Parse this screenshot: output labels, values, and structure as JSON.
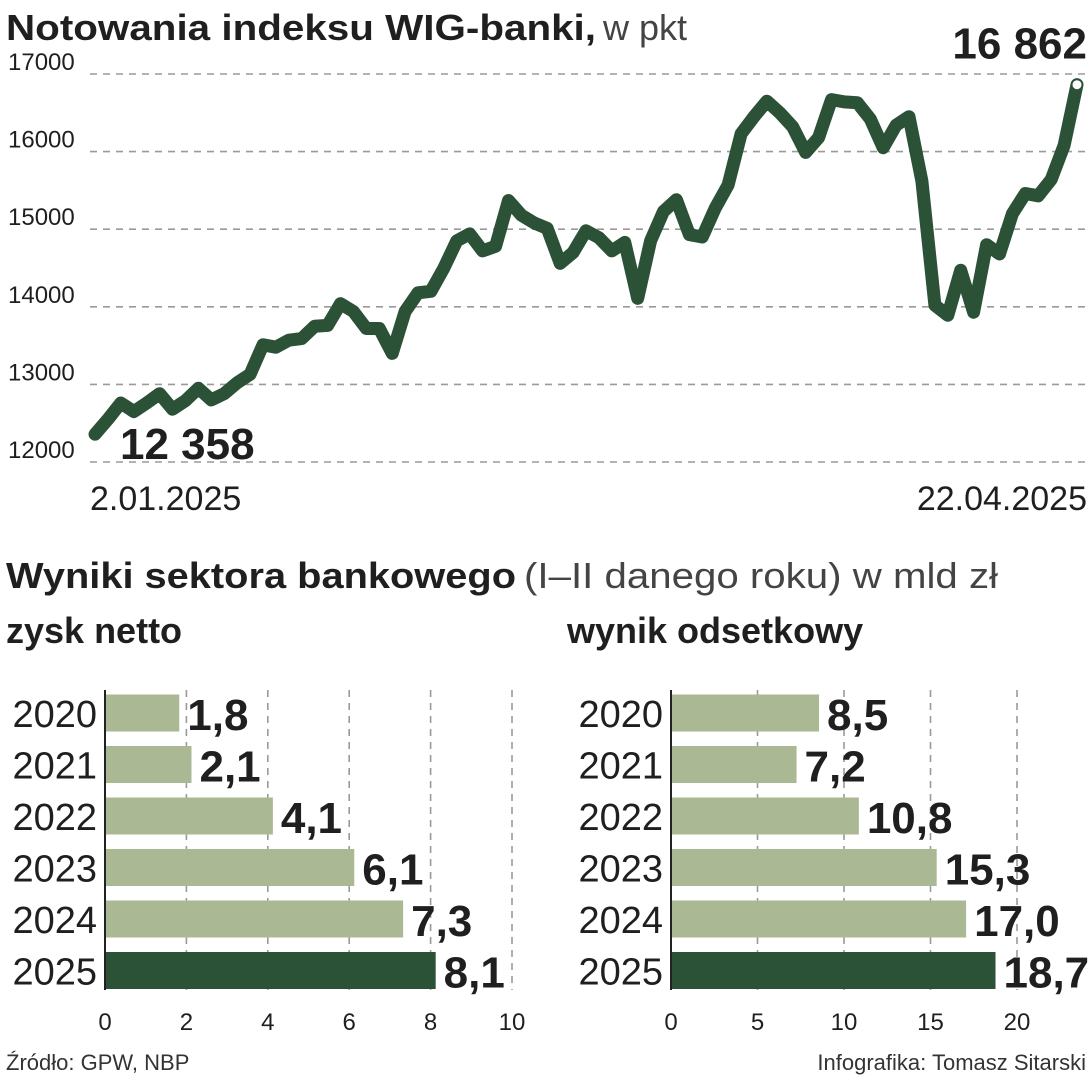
{
  "header": {
    "title": "Notowania indeksu WIG-banki,",
    "unit": "w pkt"
  },
  "section2": {
    "title": "Wyniki sektora bankowego",
    "subtitle": "(I–II danego roku) w mld zł"
  },
  "footer": {
    "source": "Źródło: GPW, NBP",
    "credit": "Infografika: Tomasz Sitarski"
  },
  "colors": {
    "line": "#2b5236",
    "bar": "#aab893",
    "highlight": "#2b5236",
    "grid": "#9a9a9a",
    "text": "#1f1f1f"
  },
  "chart_data": [
    {
      "type": "line",
      "x_start_label": "2.01.2025",
      "x_end_label": "22.04.2025",
      "start_value_label": "12 358",
      "end_value_label": "16 862",
      "ylim": [
        12000,
        17000
      ],
      "yticks": [
        12000,
        13000,
        14000,
        15000,
        16000,
        17000
      ],
      "grid": true,
      "series": [
        {
          "values": [
            12358,
            12550,
            12760,
            12650,
            12760,
            12880,
            12680,
            12790,
            12950,
            12800,
            12880,
            13020,
            13130,
            13510,
            13480,
            13570,
            13590,
            13750,
            13760,
            14040,
            13940,
            13720,
            13720,
            13400,
            13940,
            14180,
            14200,
            14500,
            14850,
            14940,
            14720,
            14780,
            15370,
            15180,
            15080,
            15010,
            14560,
            14700,
            14980,
            14890,
            14720,
            14830,
            14110,
            14850,
            15230,
            15380,
            14930,
            14900,
            15270,
            15570,
            16230,
            16450,
            16650,
            16500,
            16320,
            15990,
            16180,
            16670,
            16640,
            16630,
            16420,
            16050,
            16340,
            16450,
            15620,
            14020,
            13890,
            14470,
            13930,
            14800,
            14680,
            15200,
            15460,
            15430,
            15640,
            16080,
            16862
          ]
        }
      ]
    },
    {
      "type": "bar",
      "orientation": "horizontal",
      "title": "zysk netto",
      "categories": [
        "2020",
        "2021",
        "2022",
        "2023",
        "2024",
        "2025"
      ],
      "values": [
        1.8,
        2.1,
        4.1,
        6.1,
        7.3,
        8.1
      ],
      "value_labels": [
        "1,8",
        "2,1",
        "4,1",
        "6,1",
        "7,3",
        "8,1"
      ],
      "xlim": [
        0,
        10
      ],
      "xticks": [
        0,
        2,
        4,
        6,
        8,
        10
      ],
      "highlight": "2025",
      "grid": true
    },
    {
      "type": "bar",
      "orientation": "horizontal",
      "title": "wynik odsetkowy",
      "categories": [
        "2020",
        "2021",
        "2022",
        "2023",
        "2024",
        "2025"
      ],
      "values": [
        8.5,
        7.2,
        10.8,
        15.3,
        17.0,
        18.7
      ],
      "value_labels": [
        "8,5",
        "7,2",
        "10,8",
        "15,3",
        "17,0",
        "18,7"
      ],
      "xlim": [
        0,
        20
      ],
      "xticks": [
        0,
        5,
        10,
        15,
        20
      ],
      "highlight": "2025",
      "grid": true
    }
  ]
}
